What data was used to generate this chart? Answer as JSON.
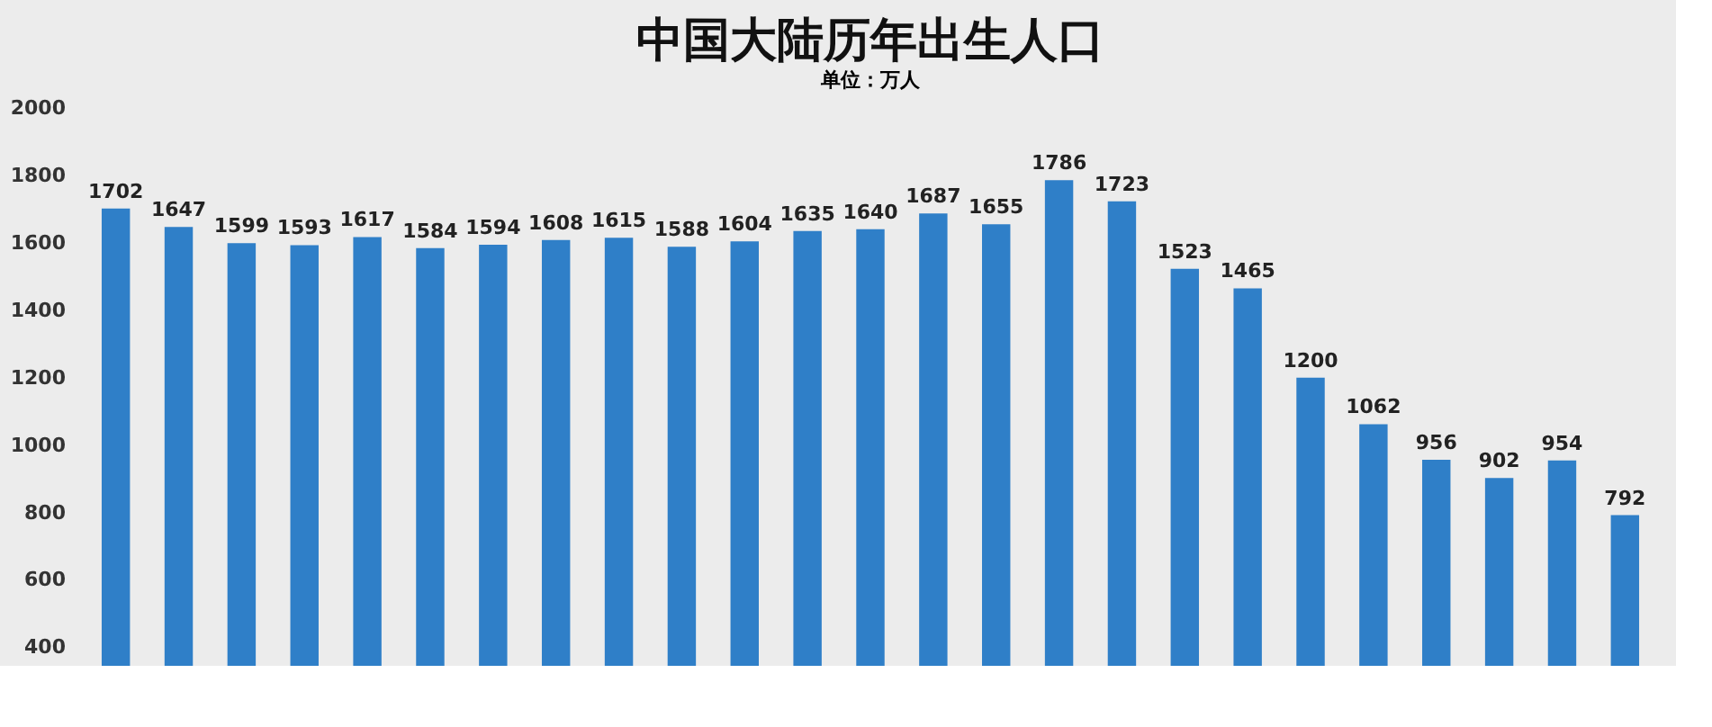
{
  "chart_data": {
    "type": "bar",
    "title": "中国大陆历年出生人口",
    "subtitle": "单位：万人",
    "categories": [
      null,
      null,
      null,
      null,
      null,
      null,
      null,
      null,
      null,
      null,
      null,
      null,
      null,
      null,
      null,
      null,
      null,
      null,
      null,
      null,
      null,
      null,
      null,
      null,
      null
    ],
    "values": [
      1702,
      1647,
      1599,
      1593,
      1617,
      1584,
      1594,
      1608,
      1615,
      1588,
      1604,
      1635,
      1640,
      1687,
      1655,
      1786,
      1723,
      1523,
      1465,
      1200,
      1062,
      956,
      902,
      954,
      792
    ],
    "color": "#2f7fc8",
    "data_labels": true,
    "ylim": [
      345,
      2000
    ],
    "yticks": [
      400,
      600,
      800,
      1000,
      1200,
      1400,
      1600,
      1800,
      2000
    ],
    "grid": false,
    "tick_labels": "y"
  }
}
